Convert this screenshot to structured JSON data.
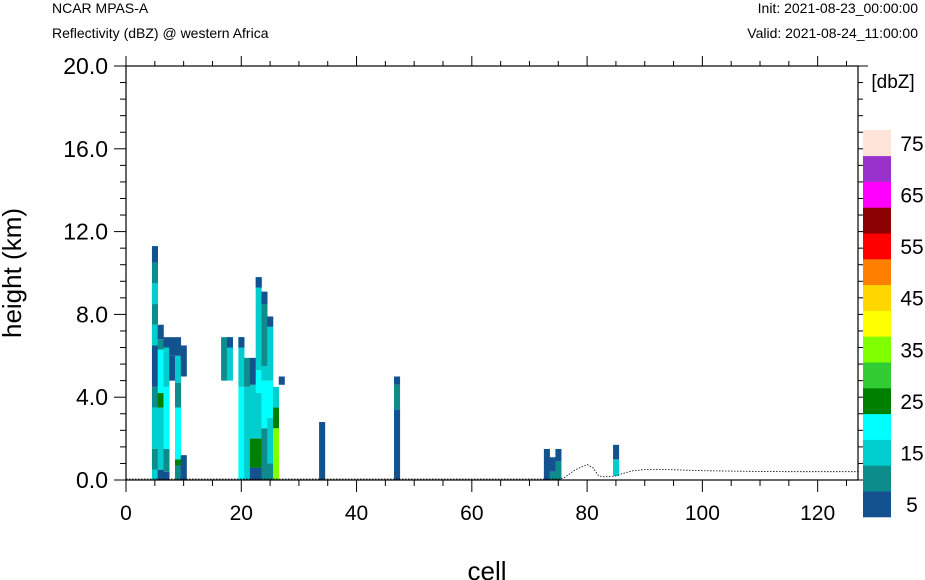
{
  "header": {
    "model": "NCAR MPAS-A",
    "field": "Reflectivity (dBZ) @ western Africa",
    "init": "Init: 2021-08-23_00:00:00",
    "valid": "Valid: 2021-08-24_11:00:00"
  },
  "chart_data": {
    "type": "heatmap",
    "xlabel": "cell",
    "ylabel": "height (km)",
    "xlim": [
      0,
      127
    ],
    "ylim": [
      0,
      20
    ],
    "x_ticks": [
      0,
      20,
      40,
      60,
      80,
      100,
      120
    ],
    "y_ticks": [
      "0.0",
      "4.0",
      "8.0",
      "12.0",
      "16.0",
      "20.0"
    ],
    "colorbar": {
      "unit": "[dbZ]",
      "levels": [
        5,
        10,
        15,
        20,
        25,
        30,
        35,
        40,
        45,
        50,
        55,
        60,
        65,
        70,
        75
      ],
      "labels": [
        "5",
        "15",
        "25",
        "35",
        "45",
        "55",
        "65",
        "75"
      ],
      "colors": [
        "#13528f",
        "#0d8c8c",
        "#00cdcd",
        "#00ffff",
        "#008000",
        "#32cd32",
        "#7fff00",
        "#ffff00",
        "#ffd700",
        "#ff8000",
        "#ff0000",
        "#8b0000",
        "#ff00ff",
        "#9932cc",
        "#ffe4da"
      ]
    },
    "columns": [
      {
        "x": 5,
        "cells": [
          [
            0,
            0.5,
            15
          ],
          [
            0.5,
            1.5,
            10
          ],
          [
            1.5,
            3.5,
            15
          ],
          [
            3.5,
            4.5,
            10
          ],
          [
            4.5,
            6.5,
            5
          ],
          [
            6.5,
            7.5,
            15
          ],
          [
            7.5,
            8.5,
            10
          ],
          [
            8.5,
            9.5,
            15
          ],
          [
            9.5,
            10.5,
            10
          ],
          [
            10.5,
            11.3,
            5
          ]
        ]
      },
      {
        "x": 6,
        "cells": [
          [
            0,
            0.5,
            5
          ],
          [
            0.5,
            3.5,
            15
          ],
          [
            3.5,
            4.2,
            25
          ],
          [
            4.2,
            6.3,
            20
          ],
          [
            6.3,
            6.8,
            10
          ],
          [
            6.8,
            7.5,
            5
          ]
        ]
      },
      {
        "x": 7,
        "cells": [
          [
            0,
            0.4,
            5
          ],
          [
            0.4,
            1.5,
            10
          ],
          [
            1.5,
            4.5,
            20
          ],
          [
            4.5,
            6.4,
            15
          ],
          [
            6.4,
            6.9,
            5
          ]
        ]
      },
      {
        "x": 8,
        "cells": [
          [
            4.8,
            6.0,
            5
          ],
          [
            6.0,
            6.9,
            5
          ]
        ]
      },
      {
        "x": 9,
        "cells": [
          [
            0,
            0.7,
            10
          ],
          [
            0.7,
            1.0,
            25
          ],
          [
            1.0,
            3.5,
            20
          ],
          [
            3.5,
            4.7,
            10
          ],
          [
            4.7,
            6.0,
            15
          ],
          [
            6.0,
            6.9,
            5
          ]
        ]
      },
      {
        "x": 10,
        "cells": [
          [
            0,
            1.2,
            5
          ],
          [
            5.0,
            6.5,
            5
          ]
        ]
      },
      {
        "x": 17,
        "cells": [
          [
            4.8,
            6.9,
            10
          ]
        ]
      },
      {
        "x": 18,
        "cells": [
          [
            4.8,
            6.9,
            15
          ],
          [
            6.4,
            6.9,
            5
          ]
        ]
      },
      {
        "x": 20,
        "cells": [
          [
            0,
            4.5,
            20
          ],
          [
            4.5,
            6.9,
            15
          ],
          [
            6.4,
            6.9,
            5
          ]
        ]
      },
      {
        "x": 21,
        "cells": [
          [
            0,
            4.5,
            15
          ],
          [
            4.5,
            5.9,
            10
          ]
        ]
      },
      {
        "x": 22,
        "cells": [
          [
            0,
            0.6,
            5
          ],
          [
            0.6,
            2.0,
            25
          ],
          [
            2.0,
            4.6,
            15
          ],
          [
            4.6,
            5.9,
            5
          ]
        ]
      },
      {
        "x": 23,
        "cells": [
          [
            0,
            0.6,
            5
          ],
          [
            0.6,
            2.0,
            25
          ],
          [
            2.0,
            4.2,
            15
          ],
          [
            4.2,
            5.3,
            20
          ],
          [
            5.3,
            9.8,
            15
          ],
          [
            9.3,
            9.8,
            5
          ]
        ]
      },
      {
        "x": 24,
        "cells": [
          [
            0,
            2.5,
            10
          ],
          [
            2.5,
            4.8,
            20
          ],
          [
            4.8,
            5.5,
            15
          ],
          [
            5.5,
            8.5,
            10
          ],
          [
            8.5,
            9.1,
            5
          ]
        ]
      },
      {
        "x": 25,
        "cells": [
          [
            0,
            0.8,
            10
          ],
          [
            0.8,
            3.0,
            15
          ],
          [
            3.0,
            4.8,
            20
          ],
          [
            4.8,
            7.4,
            15
          ],
          [
            7.4,
            7.9,
            5
          ]
        ]
      },
      {
        "x": 26,
        "cells": [
          [
            0,
            2.5,
            35
          ],
          [
            2.5,
            3.5,
            25
          ],
          [
            3.5,
            4.5,
            15
          ]
        ]
      },
      {
        "x": 27,
        "cells": [
          [
            4.6,
            5.0,
            5
          ]
        ]
      },
      {
        "x": 34,
        "cells": [
          [
            0,
            2.8,
            5
          ]
        ]
      },
      {
        "x": 47,
        "cells": [
          [
            0,
            3.4,
            5
          ],
          [
            3.4,
            4.6,
            10
          ],
          [
            4.6,
            5.0,
            5
          ]
        ]
      },
      {
        "x": 73,
        "cells": [
          [
            0,
            1.5,
            5
          ]
        ]
      },
      {
        "x": 74,
        "cells": [
          [
            0,
            0.4,
            10
          ],
          [
            0.4,
            1.1,
            5
          ]
        ]
      },
      {
        "x": 75,
        "cells": [
          [
            0,
            0.9,
            10
          ],
          [
            0.9,
            1.5,
            5
          ]
        ]
      },
      {
        "x": 85,
        "cells": [
          [
            0.2,
            1.0,
            15
          ],
          [
            1.0,
            1.7,
            5
          ]
        ]
      }
    ],
    "terrain": [
      [
        0,
        0.05
      ],
      [
        75,
        0.05
      ],
      [
        76,
        0.1
      ],
      [
        78,
        0.5
      ],
      [
        80,
        0.75
      ],
      [
        81,
        0.6
      ],
      [
        82,
        0.2
      ],
      [
        83,
        0.15
      ],
      [
        85,
        0.2
      ],
      [
        86,
        0.3
      ],
      [
        88,
        0.45
      ],
      [
        90,
        0.5
      ],
      [
        94,
        0.5
      ],
      [
        100,
        0.45
      ],
      [
        108,
        0.42
      ],
      [
        115,
        0.4
      ],
      [
        122,
        0.4
      ],
      [
        127,
        0.4
      ]
    ]
  }
}
